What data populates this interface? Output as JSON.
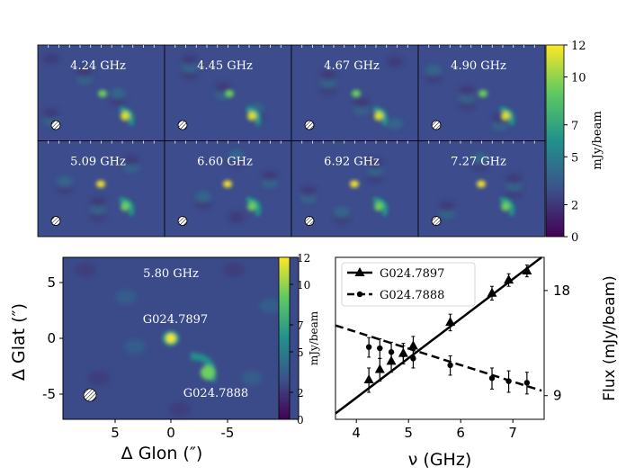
{
  "chart_data": [
    {
      "type": "heatmap",
      "panel": "channel-map-grid",
      "frequencies": [
        "4.24 GHz",
        "4.45 GHz",
        "4.67 GHz",
        "4.90 GHz",
        "5.09 GHz",
        "6.60 GHz",
        "6.92 GHz",
        "7.27 GHz"
      ],
      "colorbar": {
        "label": "mJy/beam",
        "ticks": [
          "0",
          "2",
          "5",
          "7",
          "10",
          "12"
        ],
        "range": [
          0,
          12
        ]
      },
      "colormap": [
        "#440154",
        "#3b528b",
        "#21918c",
        "#5ec962",
        "#fde725"
      ]
    },
    {
      "type": "heatmap",
      "panel": "continuum-map",
      "frequency_label": "5.80 GHz",
      "sources": [
        "G024.7897",
        "G024.7888"
      ],
      "xlabel": "Δ Glon (″)",
      "ylabel": "Δ Glat (″)",
      "xticks": [
        "5",
        "0",
        "-5"
      ],
      "yticks": [
        "5",
        "0",
        "-5"
      ],
      "colorbar": {
        "label": "mJy/beam",
        "ticks": [
          "0",
          "2",
          "5",
          "7",
          "10",
          "12"
        ],
        "range": [
          0,
          12
        ]
      }
    },
    {
      "type": "line",
      "panel": "spectrum",
      "xlabel": "ν (GHz)",
      "ylabel": "Flux (mJy/beam)",
      "xlim": [
        3.6,
        7.6
      ],
      "ylim": [
        7.7,
        22.4
      ],
      "yscale": "log",
      "xticks": [
        "4",
        "5",
        "6",
        "7"
      ],
      "yticks": [
        "9",
        "18"
      ],
      "legend": "top-left",
      "series": [
        {
          "name": "G024.7897",
          "style": "solid",
          "marker": "triangle",
          "x": [
            4.24,
            4.45,
            4.67,
            4.9,
            5.09,
            5.8,
            6.6,
            6.92,
            7.27
          ],
          "y": [
            10.0,
            10.7,
            11.3,
            11.9,
            12.5,
            14.6,
            17.7,
            19.3,
            20.5
          ],
          "fit_x": [
            3.6,
            7.55
          ],
          "fit_y": [
            8.0,
            22.4
          ]
        },
        {
          "name": "G024.7888",
          "style": "dashed",
          "marker": "circle",
          "x": [
            4.24,
            4.45,
            4.67,
            4.9,
            5.09,
            5.8,
            6.6,
            6.92,
            7.27
          ],
          "y": [
            12.4,
            12.3,
            12.0,
            11.8,
            11.5,
            11.0,
            10.1,
            9.9,
            9.8
          ],
          "err": [
            0.8,
            0.8,
            0.8,
            0.7,
            0.7,
            0.7,
            0.7,
            0.7,
            0.7
          ],
          "fit_x": [
            3.6,
            7.55
          ],
          "fit_y": [
            14.3,
            9.3
          ]
        }
      ]
    }
  ]
}
